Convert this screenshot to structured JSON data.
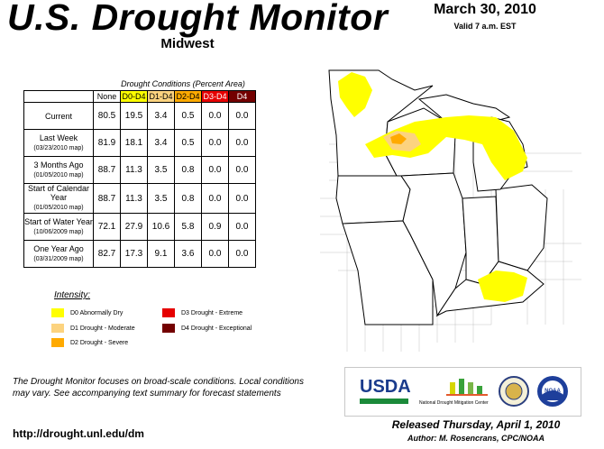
{
  "header": {
    "title": "U.S. Drought Monitor",
    "region": "Midwest",
    "date": "March 30, 2010",
    "valid": "Valid 7 a.m. EST"
  },
  "table": {
    "caption": "Drought Conditions (Percent Area)",
    "columns": [
      "None",
      "D0-D4",
      "D1-D4",
      "D2-D4",
      "D3-D4",
      "D4"
    ],
    "column_colors": [
      "#ffffff",
      "#ffff00",
      "#fcd37f",
      "#ffaa00",
      "#e60000",
      "#730000"
    ],
    "column_text_colors": [
      "#000000",
      "#000000",
      "#000000",
      "#000000",
      "#ffffff",
      "#ffffff"
    ],
    "rows": [
      {
        "label": "Current",
        "sub": "",
        "values": [
          "80.5",
          "19.5",
          "3.4",
          "0.5",
          "0.0",
          "0.0"
        ]
      },
      {
        "label": "Last Week",
        "sub": "(03/23/2010 map)",
        "values": [
          "81.9",
          "18.1",
          "3.4",
          "0.5",
          "0.0",
          "0.0"
        ]
      },
      {
        "label": "3 Months Ago",
        "sub": "(01/05/2010 map)",
        "values": [
          "88.7",
          "11.3",
          "3.5",
          "0.8",
          "0.0",
          "0.0"
        ]
      },
      {
        "label": "Start of Calendar Year",
        "sub": "(01/05/2010 map)",
        "values": [
          "88.7",
          "11.3",
          "3.5",
          "0.8",
          "0.0",
          "0.0"
        ]
      },
      {
        "label": "Start of Water Year",
        "sub": "(10/06/2009 map)",
        "values": [
          "72.1",
          "27.9",
          "10.6",
          "5.8",
          "0.9",
          "0.0"
        ]
      },
      {
        "label": "One Year Ago",
        "sub": "(03/31/2009 map)",
        "values": [
          "82.7",
          "17.3",
          "9.1",
          "3.6",
          "0.0",
          "0.0"
        ]
      }
    ]
  },
  "legend": {
    "title": "Intensity:",
    "items": [
      {
        "label": "D0 Abnormally Dry",
        "color": "#ffff00"
      },
      {
        "label": "D1 Drought - Moderate",
        "color": "#fcd37f"
      },
      {
        "label": "D2 Drought - Severe",
        "color": "#ffaa00"
      },
      {
        "label": "D3 Drought - Extreme",
        "color": "#e60000"
      },
      {
        "label": "D4 Drought - Exceptional",
        "color": "#730000"
      }
    ]
  },
  "notes": "The Drought Monitor focuses on broad-scale conditions. Local conditions may vary. See accompanying text summary for forecast statements",
  "url": "http://drought.unl.edu/dm",
  "released": "Released Thursday, April 1, 2010",
  "author": "Author: M. Rosencrans, CPC/NOAA",
  "logos": {
    "usda": "USDA",
    "ndmc": "National Drought Mitigation Center",
    "doc": "",
    "noaa": "NOAA"
  },
  "map": {
    "d0_color": "#ffff00",
    "d1_color": "#fcd37f",
    "d2_color": "#ffaa00",
    "state_fill": "#ffffff",
    "state_line": "#000000",
    "county_line": "#b4b4b4"
  }
}
